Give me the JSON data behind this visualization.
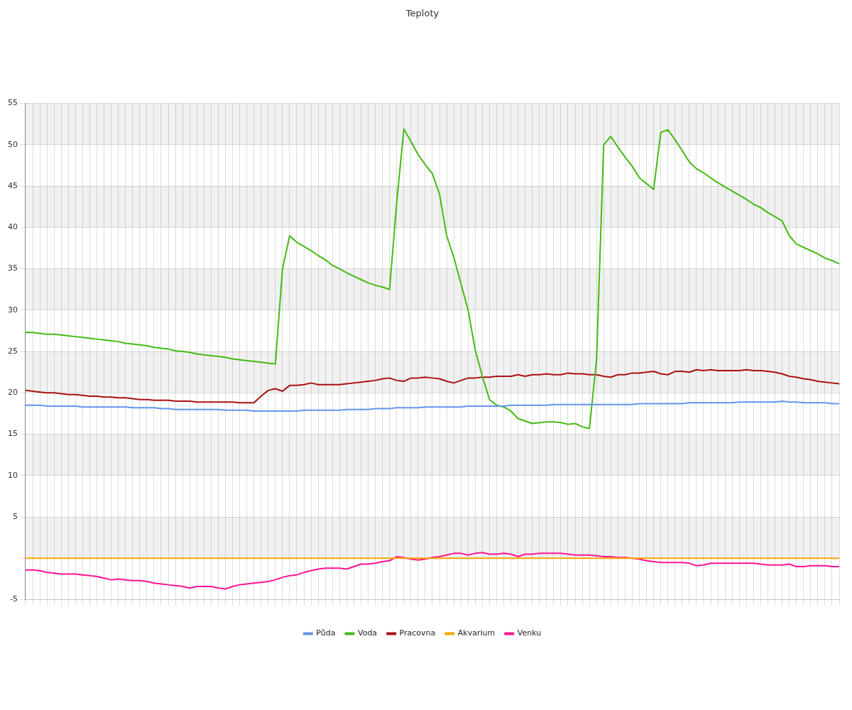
{
  "chart_data": {
    "type": "line",
    "title": "Teploty",
    "categories": [
      null,
      null,
      null,
      null,
      null,
      null,
      null,
      null,
      null,
      null,
      null,
      null,
      null,
      null,
      null,
      null,
      null,
      null,
      null,
      null,
      null,
      null,
      null,
      null,
      null,
      null,
      null,
      null,
      null,
      null,
      null,
      null,
      null,
      null,
      null,
      null,
      null,
      null,
      null,
      null,
      null,
      null,
      null,
      null,
      null,
      null,
      null,
      null,
      null,
      null,
      null,
      null,
      null,
      null,
      null,
      null,
      null,
      null,
      null,
      null,
      null,
      null,
      null,
      null,
      null,
      null,
      null,
      null,
      null,
      null,
      null,
      null,
      null,
      null,
      null,
      null,
      null,
      null,
      null,
      null,
      null,
      null,
      null,
      null,
      null,
      null,
      null,
      null,
      null,
      null,
      null,
      null,
      null,
      null,
      null,
      null,
      null,
      null,
      null,
      null,
      null,
      null,
      null,
      null,
      null,
      null,
      null,
      null,
      null,
      null,
      null,
      null,
      null,
      null,
      null
    ],
    "series": [
      {
        "name": "Půda",
        "color": "#6495ed",
        "values": [
          18.5,
          18.5,
          18.5,
          18.4,
          18.4,
          18.4,
          18.4,
          18.4,
          18.3,
          18.3,
          18.3,
          18.3,
          18.3,
          18.3,
          18.3,
          18.2,
          18.2,
          18.2,
          18.2,
          18.1,
          18.1,
          18.0,
          18.0,
          18.0,
          18.0,
          18.0,
          18.0,
          18.0,
          17.9,
          17.9,
          17.9,
          17.9,
          17.8,
          17.8,
          17.8,
          17.8,
          17.8,
          17.8,
          17.8,
          17.9,
          17.9,
          17.9,
          17.9,
          17.9,
          17.9,
          18.0,
          18.0,
          18.0,
          18.0,
          18.1,
          18.1,
          18.1,
          18.2,
          18.2,
          18.2,
          18.2,
          18.3,
          18.3,
          18.3,
          18.3,
          18.3,
          18.3,
          18.4,
          18.4,
          18.4,
          18.4,
          18.4,
          18.4,
          18.5,
          18.5,
          18.5,
          18.5,
          18.5,
          18.5,
          18.6,
          18.6,
          18.6,
          18.6,
          18.6,
          18.6,
          18.6,
          18.6,
          18.6,
          18.6,
          18.6,
          18.6,
          18.7,
          18.7,
          18.7,
          18.7,
          18.7,
          18.7,
          18.7,
          18.8,
          18.8,
          18.8,
          18.8,
          18.8,
          18.8,
          18.8,
          18.9,
          18.9,
          18.9,
          18.9,
          18.9,
          18.9,
          19.0,
          18.9,
          18.9,
          18.8,
          18.8,
          18.8,
          18.8,
          18.7,
          18.7
        ]
      },
      {
        "name": "Voda",
        "color": "#44bb11",
        "values": [
          27.3,
          27.3,
          27.2,
          27.1,
          27.1,
          27.0,
          26.9,
          26.8,
          26.7,
          26.6,
          26.5,
          26.4,
          26.3,
          26.2,
          26.0,
          25.9,
          25.8,
          25.7,
          25.5,
          25.4,
          25.3,
          25.1,
          25.0,
          24.9,
          24.7,
          24.6,
          24.5,
          24.4,
          24.3,
          24.1,
          24.0,
          23.9,
          23.8,
          23.7,
          23.6,
          23.5,
          35,
          39.0,
          38.2,
          37.7,
          37.2,
          36.6,
          36.1,
          35.4,
          35.0,
          34.5,
          34.1,
          33.7,
          33.3,
          33.0,
          32.8,
          32.5,
          43,
          51.9,
          50.4,
          48.8,
          47.6,
          46.5,
          44,
          39,
          36.4,
          33.2,
          30,
          25.2,
          22,
          19.2,
          18.5,
          18.3,
          17.8,
          16.9,
          16.6,
          16.3,
          16.4,
          16.5,
          16.5,
          16.4,
          16.2,
          16.3,
          15.9,
          15.7,
          24,
          50,
          51,
          49.7,
          48.5,
          47.4,
          46.0,
          45.3,
          44.6,
          51.5,
          51.8,
          50.6,
          49.3,
          47.9,
          47.1,
          46.6,
          46.0,
          45.4,
          44.9,
          44.4,
          43.9,
          43.4,
          42.8,
          42.4,
          41.8,
          41.3,
          40.8,
          39.0,
          38.0,
          37.6,
          37.2,
          36.8,
          36.3,
          36.0,
          35.6
        ]
      },
      {
        "name": "Pracovna",
        "color": "#aa1111",
        "values": [
          20.3,
          20.2,
          20.1,
          20.0,
          20.0,
          19.9,
          19.8,
          19.8,
          19.7,
          19.6,
          19.6,
          19.5,
          19.5,
          19.4,
          19.4,
          19.3,
          19.2,
          19.2,
          19.1,
          19.1,
          19.1,
          19.0,
          19.0,
          19.0,
          18.9,
          18.9,
          18.9,
          18.9,
          18.9,
          18.9,
          18.8,
          18.8,
          18.8,
          19.6,
          20.3,
          20.5,
          20.2,
          20.9,
          20.9,
          21.0,
          21.2,
          21.0,
          21.0,
          21.0,
          21.0,
          21.1,
          21.2,
          21.3,
          21.4,
          21.5,
          21.7,
          21.8,
          21.5,
          21.4,
          21.8,
          21.8,
          21.9,
          21.8,
          21.7,
          21.4,
          21.2,
          21.5,
          21.8,
          21.8,
          21.9,
          21.9,
          22.0,
          22.0,
          22.0,
          22.2,
          22.0,
          22.2,
          22.2,
          22.3,
          22.2,
          22.2,
          22.4,
          22.3,
          22.3,
          22.2,
          22.2,
          22.0,
          21.9,
          22.2,
          22.2,
          22.4,
          22.4,
          22.5,
          22.6,
          22.3,
          22.2,
          22.6,
          22.6,
          22.5,
          22.8,
          22.7,
          22.8,
          22.7,
          22.7,
          22.7,
          22.7,
          22.8,
          22.7,
          22.7,
          22.6,
          22.5,
          22.3,
          22.0,
          21.9,
          21.7,
          21.6,
          21.4,
          21.3,
          21.2,
          21.1
        ]
      },
      {
        "name": "Akvarium",
        "color": "#ffa500",
        "values": [
          0,
          0,
          0,
          0,
          0,
          0,
          0,
          0,
          0,
          0,
          0,
          0,
          0,
          0,
          0,
          0,
          0,
          0,
          0,
          0,
          0,
          0,
          0,
          0,
          0,
          0,
          0,
          0,
          0,
          0,
          0,
          0,
          0,
          0,
          0,
          0,
          0,
          0,
          0,
          0,
          0,
          0,
          0,
          0,
          0,
          0,
          0,
          0,
          0,
          0,
          0,
          0,
          0,
          0,
          0,
          0,
          0,
          0,
          0,
          0,
          0,
          0,
          0,
          0,
          0,
          0,
          0,
          0,
          0,
          0,
          0,
          0,
          0,
          0,
          0,
          0,
          0,
          0,
          0,
          0,
          0,
          0,
          0,
          0,
          0,
          0,
          0,
          0,
          0,
          0,
          0,
          0,
          0,
          0,
          0,
          0,
          0,
          0,
          0,
          0,
          0,
          0,
          0,
          0,
          0,
          0,
          0,
          0,
          0,
          0,
          0,
          0,
          0,
          0,
          0
        ]
      },
      {
        "name": "Venku",
        "color": "#ff1493",
        "values": [
          -1.4,
          -1.4,
          -1.5,
          -1.7,
          -1.8,
          -1.9,
          -1.9,
          -1.9,
          -2.0,
          -2.1,
          -2.2,
          -2.4,
          -2.6,
          -2.5,
          -2.6,
          -2.7,
          -2.7,
          -2.8,
          -3.0,
          -3.1,
          -3.2,
          -3.3,
          -3.4,
          -3.6,
          -3.4,
          -3.4,
          -3.4,
          -3.6,
          -3.7,
          -3.4,
          -3.2,
          -3.1,
          -3.0,
          -2.9,
          -2.8,
          -2.6,
          -2.3,
          -2.1,
          -2.0,
          -1.7,
          -1.5,
          -1.3,
          -1.2,
          -1.2,
          -1.2,
          -1.3,
          -1.0,
          -0.7,
          -0.7,
          -0.6,
          -0.4,
          -0.3,
          0.2,
          0.1,
          -0.1,
          -0.2,
          -0.1,
          0.1,
          0.2,
          0.4,
          0.6,
          0.6,
          0.4,
          0.6,
          0.7,
          0.5,
          0.5,
          0.6,
          0.5,
          0.2,
          0.5,
          0.5,
          0.6,
          0.6,
          0.6,
          0.6,
          0.5,
          0.4,
          0.4,
          0.4,
          0.3,
          0.2,
          0.2,
          0.1,
          0.1,
          0.0,
          -0.1,
          -0.3,
          -0.4,
          -0.5,
          -0.5,
          -0.5,
          -0.5,
          -0.6,
          -0.9,
          -0.8,
          -0.6,
          -0.6,
          -0.6,
          -0.6,
          -0.6,
          -0.6,
          -0.6,
          -0.7,
          -0.8,
          -0.8,
          -0.8,
          -0.7,
          -1.0,
          -1.0,
          -0.9,
          -0.9,
          -0.9,
          -1.0,
          -1.0
        ]
      }
    ],
    "ylim": [
      -5,
      55
    ],
    "yticks": [
      -5,
      {
        "value": 0,
        "label": null
      },
      5,
      10,
      15,
      20,
      25,
      30,
      35,
      40,
      45,
      50,
      55
    ],
    "grid": true,
    "legend": "bottom",
    "marker": "none",
    "line_style": "solid"
  }
}
